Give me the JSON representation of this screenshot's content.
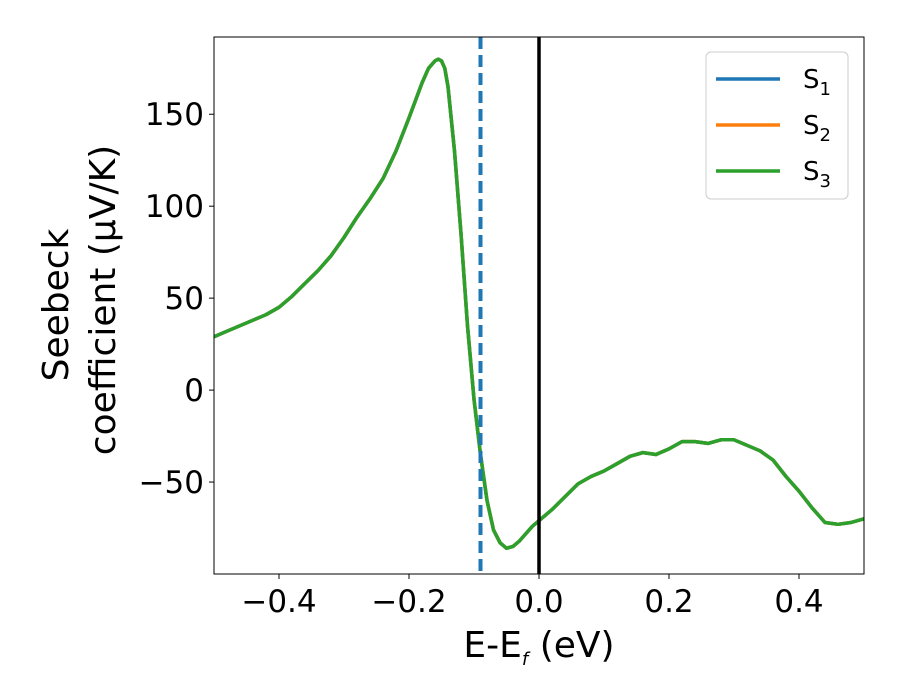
{
  "chart_data": {
    "type": "line",
    "xlabel": "E-E",
    "xlabel_sub": "f",
    "xlabel_unit": " (eV)",
    "ylabel_line1": "Seebeck",
    "ylabel_line2": "coefficient  (μV/K)",
    "xlim": [
      -0.5,
      0.5
    ],
    "ylim": [
      -100,
      192
    ],
    "x_ticks": [
      -0.4,
      -0.2,
      0.0,
      0.2,
      0.4
    ],
    "x_tick_labels": [
      "−0.4",
      "−0.2",
      "0.0",
      "0.2",
      "0.4"
    ],
    "y_ticks": [
      -50,
      0,
      50,
      100,
      150
    ],
    "y_tick_labels": [
      "−50",
      "0",
      "50",
      "100",
      "150"
    ],
    "grid": false,
    "legend_position": "top-right",
    "vertical_lines": [
      {
        "x": -0.09,
        "style": "dashed",
        "color": "#1f77b4"
      },
      {
        "x": 0.0,
        "style": "solid",
        "color": "#000000"
      }
    ],
    "x": [
      -0.5,
      -0.48,
      -0.46,
      -0.44,
      -0.42,
      -0.4,
      -0.38,
      -0.36,
      -0.34,
      -0.32,
      -0.3,
      -0.28,
      -0.26,
      -0.24,
      -0.22,
      -0.2,
      -0.18,
      -0.17,
      -0.16,
      -0.155,
      -0.15,
      -0.145,
      -0.14,
      -0.13,
      -0.12,
      -0.11,
      -0.1,
      -0.09,
      -0.08,
      -0.07,
      -0.06,
      -0.05,
      -0.04,
      -0.03,
      -0.02,
      -0.01,
      0.0,
      0.02,
      0.04,
      0.06,
      0.08,
      0.1,
      0.12,
      0.14,
      0.16,
      0.18,
      0.2,
      0.22,
      0.24,
      0.26,
      0.28,
      0.3,
      0.32,
      0.34,
      0.36,
      0.38,
      0.4,
      0.42,
      0.44,
      0.46,
      0.48,
      0.5
    ],
    "series": [
      {
        "name": "S",
        "sub": "1",
        "color": "#1f77b4",
        "values": [
          29,
          32,
          35,
          38,
          41,
          45,
          51,
          58,
          65,
          73,
          83,
          94,
          104,
          115,
          130,
          148,
          167,
          175,
          179,
          180,
          179,
          175,
          165,
          130,
          85,
          35,
          -5,
          -35,
          -60,
          -76,
          -83,
          -86,
          -85,
          -82,
          -78,
          -74,
          -71,
          -65,
          -58,
          -51,
          -47,
          -44,
          -40,
          -36,
          -34,
          -35,
          -32,
          -28,
          -28,
          -29,
          -27,
          -27,
          -30,
          -33,
          -38,
          -47,
          -55,
          -64,
          -72,
          -73,
          -72,
          -70
        ]
      },
      {
        "name": "S",
        "sub": "2",
        "color": "#ff7f0e",
        "values": [
          29,
          32,
          35,
          38,
          41,
          45,
          51,
          58,
          65,
          73,
          83,
          94,
          104,
          115,
          130,
          148,
          167,
          175,
          179,
          180,
          179,
          175,
          165,
          130,
          85,
          35,
          -5,
          -35,
          -60,
          -76,
          -83,
          -86,
          -85,
          -82,
          -78,
          -74,
          -71,
          -65,
          -58,
          -51,
          -47,
          -44,
          -40,
          -36,
          -34,
          -35,
          -32,
          -28,
          -28,
          -29,
          -27,
          -27,
          -30,
          -33,
          -38,
          -47,
          -55,
          -64,
          -72,
          -73,
          -72,
          -70
        ]
      },
      {
        "name": "S",
        "sub": "3",
        "color": "#2ca02c",
        "values": [
          29,
          32,
          35,
          38,
          41,
          45,
          51,
          58,
          65,
          73,
          83,
          94,
          104,
          115,
          130,
          148,
          167,
          175,
          179,
          180,
          179,
          175,
          165,
          130,
          85,
          35,
          -5,
          -35,
          -60,
          -76,
          -83,
          -86,
          -85,
          -82,
          -78,
          -74,
          -71,
          -65,
          -58,
          -51,
          -47,
          -44,
          -40,
          -36,
          -34,
          -35,
          -32,
          -28,
          -28,
          -29,
          -27,
          -27,
          -30,
          -33,
          -38,
          -47,
          -55,
          -64,
          -72,
          -73,
          -72,
          -70
        ]
      }
    ]
  }
}
